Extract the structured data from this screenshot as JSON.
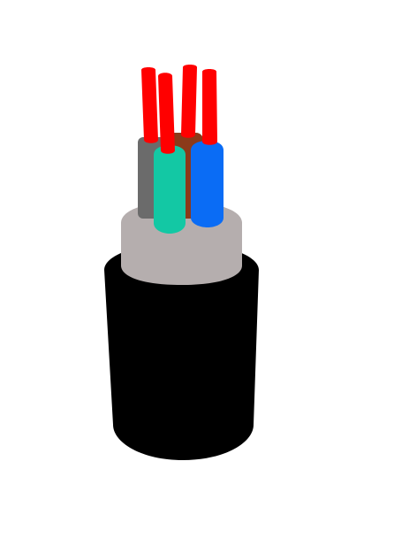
{
  "image": {
    "background": "#ffffff",
    "subject": "multi-core-cable-cross-section",
    "colors": {
      "outer_jacket": "#000000",
      "inner_sheath": "#b5aeae",
      "core_grey": "#6b6b6b",
      "core_brown": "#8b3a1a",
      "core_green": "#13c8a4",
      "core_blue": "#0a6cf5",
      "conductor": "#ff0000"
    }
  }
}
